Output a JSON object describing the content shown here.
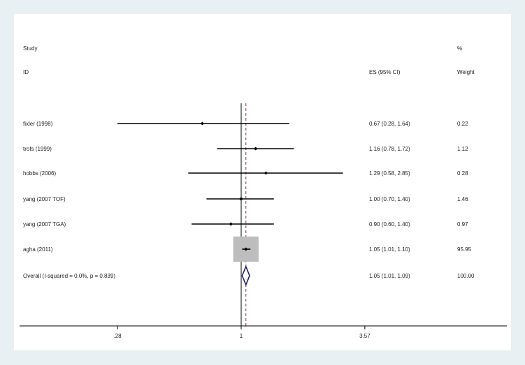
{
  "chart_data": {
    "type": "forest",
    "header": {
      "study_label": "Study",
      "id_label": "ID",
      "es_label": "ES (95% CI)",
      "pct_label": "%",
      "weight_label": "Weight"
    },
    "scale": "log",
    "xlim": [
      0.2,
      6.0
    ],
    "xticks": [
      {
        "value": 0.28,
        "label": ".28"
      },
      {
        "value": 1,
        "label": "1"
      },
      {
        "value": 3.57,
        "label": "3.57"
      }
    ],
    "null_line": 1,
    "overall_line": 1.05,
    "studies": [
      {
        "label": "fixler (1998)",
        "es": 0.67,
        "lo": 0.28,
        "hi": 1.64,
        "es_text": "0.67 (0.28, 1.64)",
        "weight": 0.22,
        "weight_text": "0.22"
      },
      {
        "label": "trofs (1999)",
        "es": 1.16,
        "lo": 0.78,
        "hi": 1.72,
        "es_text": "1.16 (0.78, 1.72)",
        "weight": 1.12,
        "weight_text": "1.12"
      },
      {
        "label": "hobbs (2006)",
        "es": 1.29,
        "lo": 0.58,
        "hi": 2.85,
        "es_text": "1.29 (0.58, 2.85)",
        "weight": 0.28,
        "weight_text": "0.28"
      },
      {
        "label": "yang (2007 TOF)",
        "es": 1.0,
        "lo": 0.7,
        "hi": 1.4,
        "es_text": "1.00 (0.70, 1.40)",
        "weight": 1.46,
        "weight_text": "1.46"
      },
      {
        "label": "yang (2007 TGA)",
        "es": 0.9,
        "lo": 0.6,
        "hi": 1.4,
        "es_text": "0.90 (0.60, 1.40)",
        "weight": 0.97,
        "weight_text": "0.97"
      },
      {
        "label": "agha (2011)",
        "es": 1.05,
        "lo": 1.01,
        "hi": 1.1,
        "es_text": "1.05 (1.01, 1.10)",
        "weight": 95.95,
        "weight_text": "95.95"
      }
    ],
    "overall": {
      "label": "Overall  (I-squared = 0.0%, p = 0.839)",
      "es": 1.05,
      "lo": 1.01,
      "hi": 1.09,
      "es_text": "1.05 (1.01, 1.09)",
      "weight_text": "100.00"
    },
    "colors": {
      "ci_line": "#000000",
      "weight_box": "#bdbdbd",
      "diamond": "#1b1f5c",
      "overall_line": "#a0263a",
      "axis": "#000000"
    }
  }
}
